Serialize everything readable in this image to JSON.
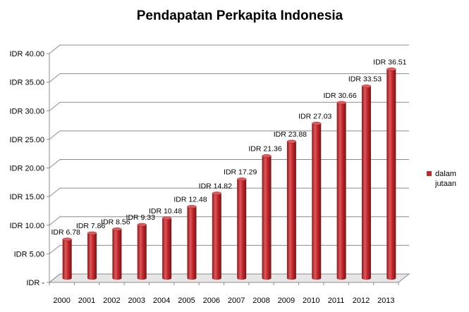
{
  "chart_data": {
    "type": "bar",
    "title": "Pendapatan Perkapita Indonesia",
    "categories": [
      "2000",
      "2001",
      "2002",
      "2003",
      "2004",
      "2005",
      "2006",
      "2007",
      "2008",
      "2009",
      "2010",
      "2011",
      "2012",
      "2013"
    ],
    "series": [
      {
        "name": "dalam jutaan",
        "values": [
          6.78,
          7.86,
          8.56,
          9.33,
          10.48,
          12.48,
          14.82,
          17.29,
          21.36,
          23.88,
          27.03,
          30.66,
          33.53,
          36.51
        ],
        "data_labels": [
          "IDR 6.78",
          "IDR 7.86",
          "IDR 8.56",
          "IDR 9.33",
          "IDR 10.48",
          "IDR 12.48",
          "IDR 14.82",
          "IDR 17.29",
          "IDR 21.36",
          "IDR 23.88",
          "IDR 27.03",
          "IDR 30.66",
          "IDR 33.53",
          "IDR 36.51"
        ]
      }
    ],
    "ylim": [
      0,
      40
    ],
    "yticks": [
      0,
      5,
      10,
      15,
      20,
      25,
      30,
      35,
      40
    ],
    "ytick_labels": [
      "IDR -",
      "IDR 5.00",
      "IDR 10.00",
      "IDR 15.00",
      "IDR 20.00",
      "IDR 25.00",
      "IDR 30.00",
      "IDR 35.00",
      "IDR 40.00"
    ],
    "legend": {
      "position": "right",
      "lines": [
        "dalam",
        "jutaan"
      ]
    },
    "grid": true,
    "style": "3d-cylinder",
    "colors": {
      "bar": "#c0282d",
      "bar_dark": "#7e1518",
      "bar_light": "#e05a5c",
      "grid": "#8c8c8c",
      "wall": "#d9d9d9"
    }
  }
}
